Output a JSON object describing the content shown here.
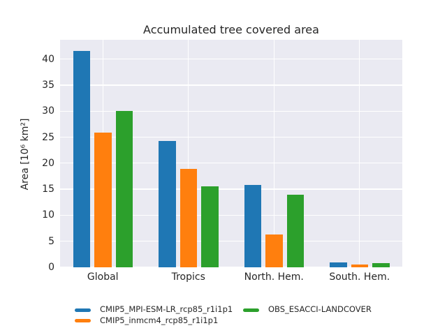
{
  "chart_data": {
    "type": "bar",
    "title": "Accumulated tree covered area",
    "xlabel": "",
    "ylabel": "Area [10⁶ km²]",
    "categories": [
      "Global",
      "Tropics",
      "North. Hem.",
      "South. Hem."
    ],
    "series": [
      {
        "name": "CMIP5_MPI-ESM-LR_rcp85_r1i1p1",
        "color": "#1f77b4",
        "values": [
          41.5,
          24.2,
          15.8,
          1.0
        ]
      },
      {
        "name": "CMIP5_inmcm4_rcp85_r1i1p1",
        "color": "#ff7f0e",
        "values": [
          25.9,
          18.9,
          6.3,
          0.6
        ]
      },
      {
        "name": "OBS_ESACCI-LANDCOVER",
        "color": "#2ca02c",
        "values": [
          30.0,
          15.5,
          14.0,
          0.8
        ]
      }
    ],
    "ylim": [
      0,
      43.7
    ],
    "yticks": [
      0,
      5,
      10,
      15,
      20,
      25,
      30,
      35,
      40
    ],
    "grid": true,
    "legend_position": "bottom",
    "colors": {
      "plot_background": "#eaeaf2",
      "grid": "#ffffff",
      "text": "#262626",
      "figure_background": "#ffffff"
    }
  }
}
